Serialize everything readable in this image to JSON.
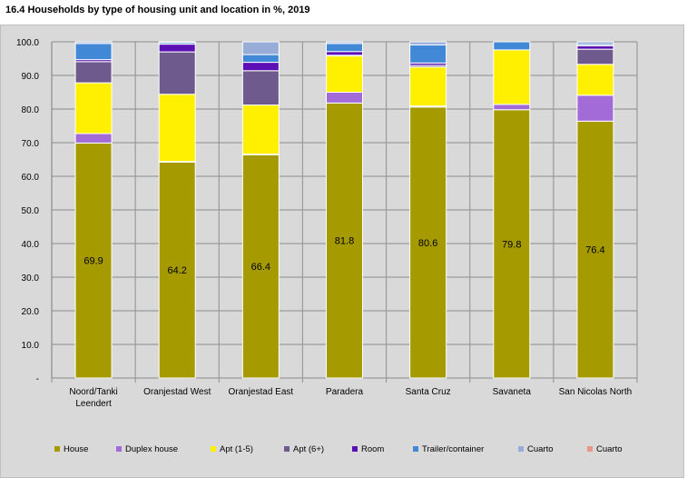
{
  "title": "16.4 Households by type of housing unit and location in %, 2019",
  "chart_data": {
    "type": "bar",
    "stacked": true,
    "title": "16.4 Households by type of housing unit and location in %, 2019",
    "xlabel": "",
    "ylabel": "",
    "ylim": [
      0,
      100
    ],
    "yticks": [
      "-",
      "10.0",
      "20.0",
      "30.0",
      "40.0",
      "50.0",
      "60.0",
      "70.0",
      "80.0",
      "90.0",
      "100.0"
    ],
    "grid": true,
    "legend": "bottom",
    "categories": [
      [
        "Noord/Tanki",
        "Leendert"
      ],
      [
        "Oranjestad West"
      ],
      [
        "Oranjestad East"
      ],
      [
        "Paradera"
      ],
      [
        "Santa Cruz"
      ],
      [
        "Savaneta"
      ],
      [
        "San Nicolas North"
      ]
    ],
    "series": [
      {
        "name": "House",
        "color": "#a59a00",
        "values": [
          69.9,
          64.2,
          66.4,
          81.8,
          80.6,
          79.8,
          76.4
        ],
        "labels": [
          "69.9",
          "64.2",
          "66.4",
          "81.8",
          "80.6",
          "79.8",
          "76.4"
        ]
      },
      {
        "name": "Duplex house",
        "color": "#a36bd8",
        "values": [
          2.8,
          0.2,
          0.2,
          3.2,
          0.3,
          1.6,
          7.7
        ]
      },
      {
        "name": "Apt (1-5)",
        "color": "#ffef00",
        "values": [
          15.1,
          20.0,
          14.6,
          10.8,
          11.6,
          16.2,
          9.2
        ]
      },
      {
        "name": "Apt (6+)",
        "color": "#6f5a8e",
        "values": [
          6.3,
          12.6,
          10.2,
          0.2,
          0.5,
          0,
          4.5
        ]
      },
      {
        "name": "Room",
        "color": "#5b0fb5",
        "values": [
          0.6,
          2.3,
          2.5,
          1.1,
          0.7,
          0,
          1.0
        ]
      },
      {
        "name": "Trailer/container",
        "color": "#4188d6",
        "values": [
          4.8,
          0.5,
          2.3,
          2.4,
          5.4,
          2.4,
          0.4
        ]
      },
      {
        "name": "Cuarto",
        "color": "#97acd6",
        "values": [
          0.5,
          0.2,
          3.8,
          0.5,
          0.9,
          0,
          0.8
        ]
      },
      {
        "name": "Cuarto",
        "color": "#e8958a",
        "values": [
          0,
          0,
          0,
          0,
          0,
          0,
          0
        ]
      }
    ]
  }
}
